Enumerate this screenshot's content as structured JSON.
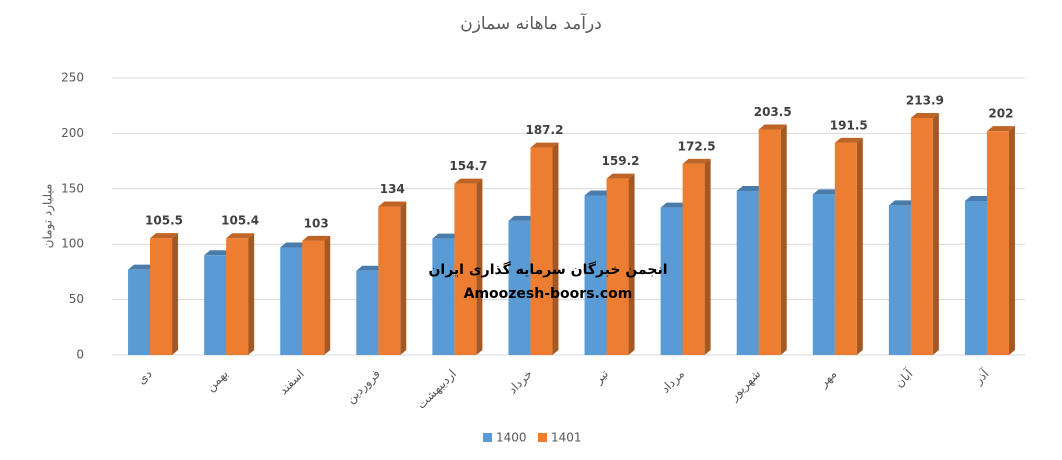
{
  "chart_data": {
    "type": "bar",
    "title": "درآمد ماهانه سمازن",
    "y_label": "میلیارد تومان",
    "categories": [
      "دی",
      "بهمن",
      "اسفند",
      "فروردین",
      "اردیبهشت",
      "خرداد",
      "تیر",
      "مرداد",
      "شهریور",
      "مهر",
      "آبان",
      "آذر"
    ],
    "series": [
      {
        "name": "1400",
        "color": "#5b9bd5",
        "values": [
          77,
          90,
          97,
          76,
          105,
          121,
          144,
          133,
          148,
          145,
          135,
          139
        ]
      },
      {
        "name": "1401",
        "color": "#ed7d31",
        "values": [
          105.5,
          105.4,
          103,
          134,
          154.7,
          187.2,
          159.2,
          172.5,
          203.5,
          191.5,
          213.9,
          202
        ],
        "show_value_labels": true
      }
    ],
    "ylim": [
      0,
      250
    ],
    "yticks": [
      0,
      50,
      100,
      150,
      200,
      250
    ],
    "grid": true,
    "legend": "bottom",
    "annotations": [
      "انجمن خبرگان سرمایه گذاری ایران",
      "Amoozesh-boors.com"
    ]
  }
}
